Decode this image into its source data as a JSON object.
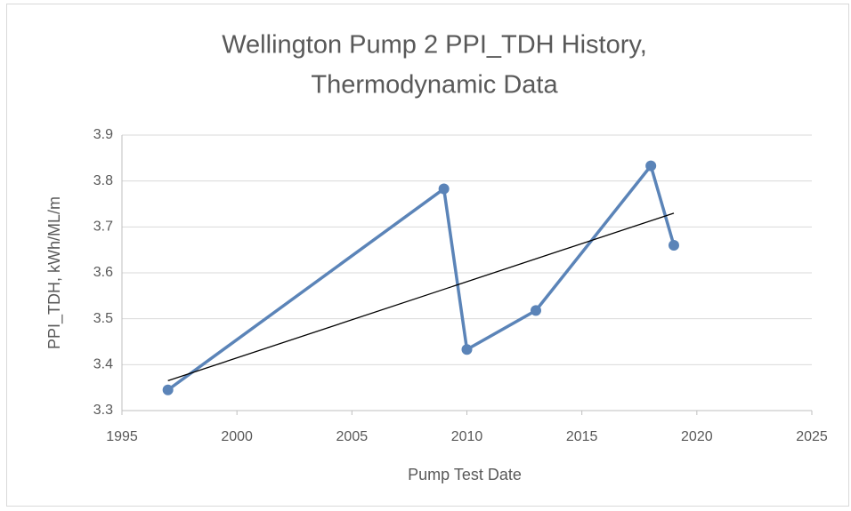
{
  "chart_data": {
    "type": "line",
    "title": [
      "Wellington Pump 2 PPI_TDH History,",
      "Thermodynamic Data"
    ],
    "x_label": "Pump Test Date",
    "y_label": "PPI_TDH, kWh/ML/m",
    "series": [
      {
        "x": [
          1997,
          2009,
          2010,
          2013,
          2018,
          2019
        ],
        "values": [
          3.345,
          3.783,
          3.433,
          3.518,
          3.833,
          3.66
        ],
        "color": "#5b84b8"
      }
    ],
    "trendline": {
      "x": [
        1997,
        2019
      ],
      "values": [
        3.365,
        3.73
      ],
      "color": "#000000"
    },
    "xlim": [
      1995,
      2025
    ],
    "xticks": [
      1995,
      2000,
      2005,
      2010,
      2015,
      2020,
      2025
    ],
    "ylim": [
      3.3,
      3.9
    ],
    "yticks": [
      3.3,
      3.4,
      3.5,
      3.6,
      3.7,
      3.8,
      3.9
    ],
    "grid": true
  }
}
